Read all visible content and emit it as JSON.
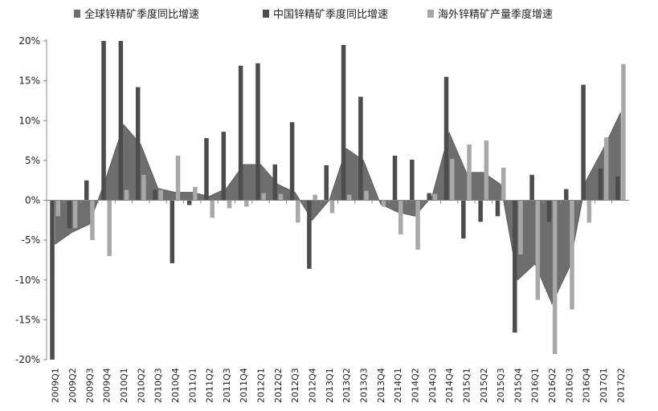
{
  "chart_data": {
    "type": "bar",
    "title": "",
    "xlabel": "",
    "ylabel": "",
    "ylim": [
      -20,
      20
    ],
    "y_ticks": [
      "20%",
      "15%",
      "10%",
      "5%",
      "0%",
      "-5%",
      "-10%",
      "-15%",
      "-20%"
    ],
    "y_tick_values": [
      20,
      15,
      10,
      5,
      0,
      -5,
      -10,
      -15,
      -20
    ],
    "legend_position": "top",
    "categories": [
      "2009Q1",
      "2009Q2",
      "2009Q3",
      "2009Q4",
      "2010Q1",
      "2010Q2",
      "2010Q3",
      "2010Q4",
      "2011Q1",
      "2011Q2",
      "2011Q3",
      "2011Q4",
      "2012Q1",
      "2012Q2",
      "2012Q3",
      "2012Q4",
      "2013Q1",
      "2013Q2",
      "2013Q3",
      "2013Q4",
      "2014Q1",
      "2014Q2",
      "2014Q3",
      "2014Q4",
      "2015Q1",
      "2015Q2",
      "2015Q3",
      "2015Q4",
      "2016Q1",
      "2016Q2",
      "2016Q3",
      "2016Q4",
      "2017Q1",
      "2017Q2"
    ],
    "series": [
      {
        "name": "全球锌精矿季度同比增速",
        "render": "area",
        "color": "#6e6e6e",
        "values": [
          -5.5,
          -4.0,
          -3.0,
          3.0,
          9.5,
          7.0,
          1.5,
          1.0,
          1.0,
          0.5,
          1.5,
          4.5,
          4.5,
          2.0,
          1.0,
          -2.5,
          0.0,
          6.5,
          5.0,
          -0.5,
          -1.5,
          -2.0,
          0.5,
          8.5,
          3.5,
          3.5,
          2.0,
          -10.0,
          -8.0,
          -13.0,
          -8.5,
          2.5,
          6.5,
          11.0
        ]
      },
      {
        "name": "中国锌精矿季度同比增速",
        "render": "bar",
        "color": "#4c4c4c",
        "values": [
          -20.0,
          -3.5,
          2.5,
          20.0,
          20.0,
          14.2,
          1.3,
          -7.9,
          -0.6,
          7.8,
          8.6,
          16.9,
          17.2,
          4.5,
          9.8,
          -8.6,
          4.4,
          19.5,
          13.0,
          0.0,
          5.6,
          5.1,
          0.9,
          15.5,
          -4.8,
          -2.7,
          -2.0,
          -16.6,
          3.2,
          -2.7,
          1.4,
          14.5,
          4.0,
          3.0
        ]
      },
      {
        "name": "海外锌精矿产量季度增速",
        "render": "bar",
        "color": "#a8a8a8",
        "values": [
          -2.0,
          -3.5,
          -5.0,
          -7.0,
          1.3,
          3.2,
          1.3,
          5.6,
          1.7,
          -2.2,
          -1.0,
          -0.8,
          0.9,
          0.8,
          -2.8,
          0.7,
          -1.6,
          0.7,
          1.2,
          -0.8,
          -4.3,
          -6.2,
          0.8,
          5.2,
          7.0,
          7.5,
          4.1,
          -6.8,
          -12.5,
          -19.3,
          -13.7,
          -2.8,
          7.9,
          17.1
        ]
      }
    ]
  }
}
